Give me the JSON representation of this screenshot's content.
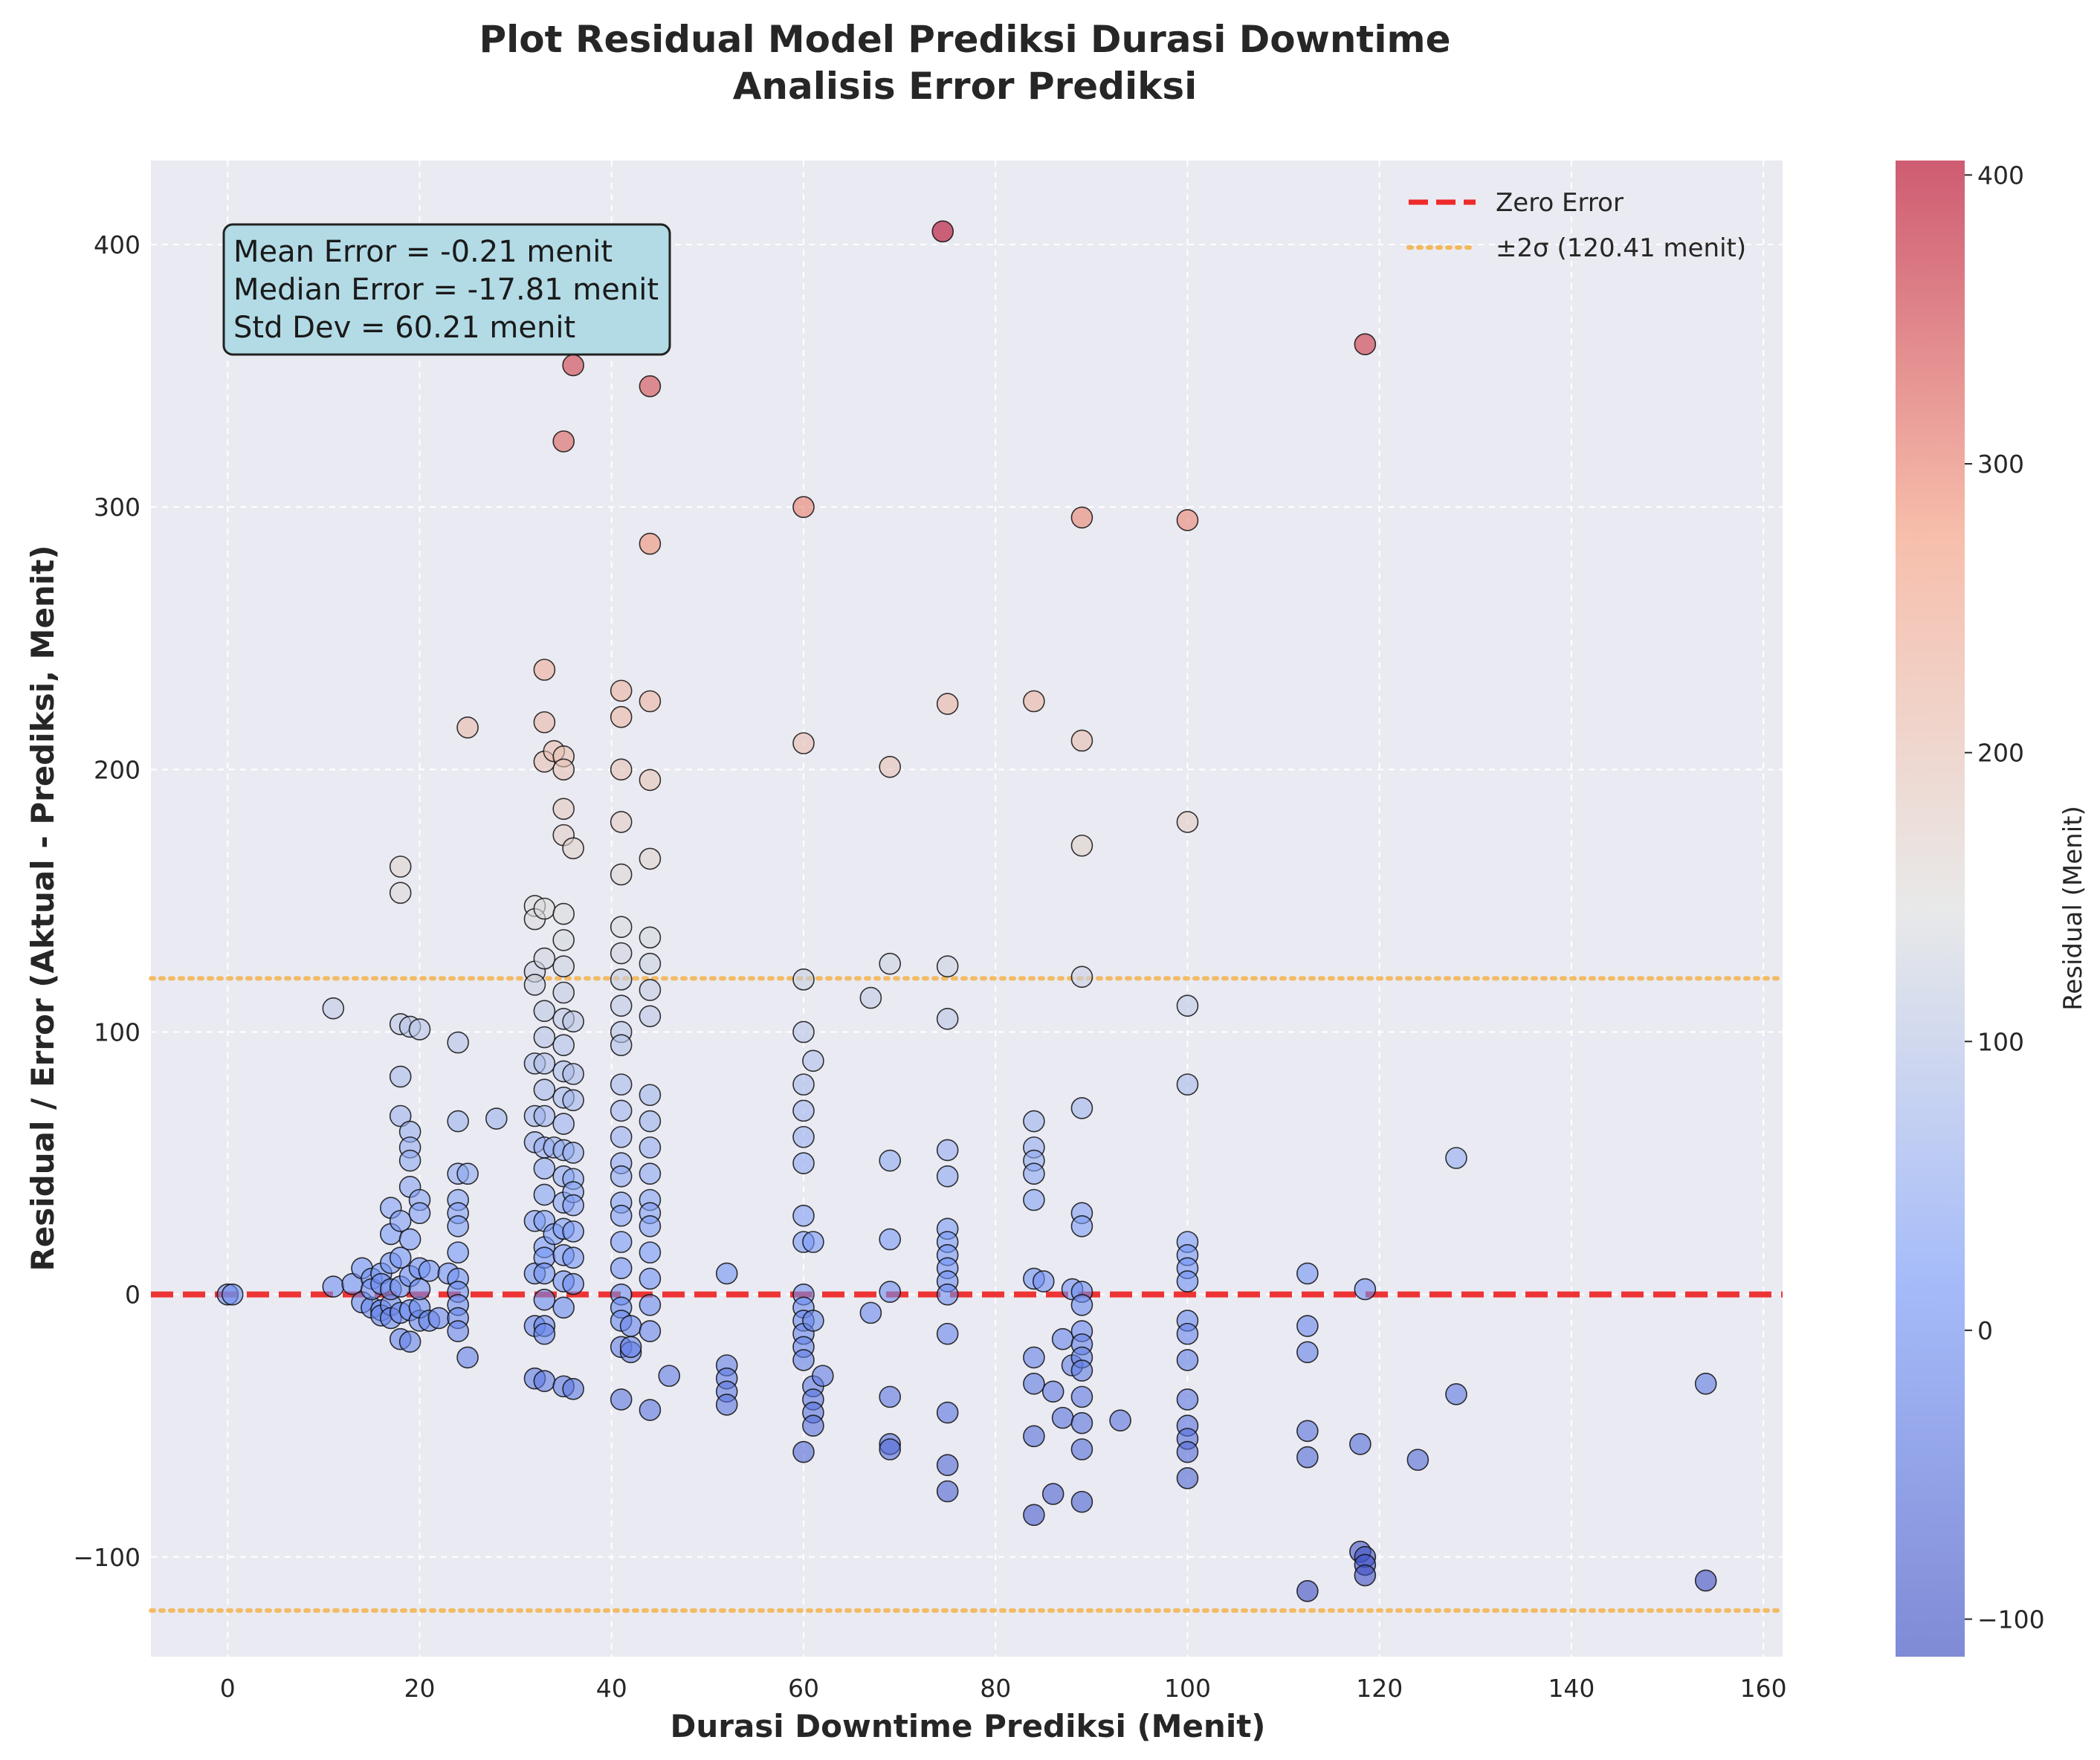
{
  "chart_data": {
    "type": "scatter",
    "title": [
      "Plot Residual Model Prediksi Durasi Downtime",
      "Analisis Error Prediksi"
    ],
    "xlabel": "Durasi Downtime Prediksi (Menit)",
    "ylabel": "Residual / Error (Aktual - Prediksi, Menit)",
    "xlim": [
      -8,
      162
    ],
    "ylim": [
      -138,
      432
    ],
    "xticks": [
      0,
      20,
      40,
      60,
      80,
      100,
      120,
      140,
      160
    ],
    "yticks": [
      -100,
      0,
      100,
      200,
      300,
      400
    ],
    "grid": true,
    "legend_position": "top-right",
    "legend": [
      {
        "label": "Zero Error",
        "style": "dashed",
        "color": "#ee2a2a"
      },
      {
        "label": "±2σ (120.41 menit)",
        "style": "dotted",
        "color": "#f5b041"
      }
    ],
    "reference_lines": [
      {
        "y": 0,
        "color": "#ee2a2a"
      },
      {
        "y": 120.41,
        "color": "#f5b041"
      },
      {
        "y": -120.41,
        "color": "#f5b041"
      }
    ],
    "stats_box": [
      "Mean Error = -0.21 menit",
      "Median Error = -17.81 menit",
      "Std Dev = 60.21 menit"
    ],
    "colorbar": {
      "label": "Residual (Menit)",
      "colormap": "coolwarm",
      "range": [
        -113,
        405
      ],
      "ticks": [
        -100,
        0,
        100,
        200,
        300,
        400
      ]
    },
    "points": [
      [
        0,
        0
      ],
      [
        0.5,
        0
      ],
      [
        11,
        109
      ],
      [
        11,
        3
      ],
      [
        13,
        4
      ],
      [
        14,
        10
      ],
      [
        14,
        -3
      ],
      [
        15,
        6
      ],
      [
        15,
        -5
      ],
      [
        15,
        2
      ],
      [
        16,
        8
      ],
      [
        16,
        -6
      ],
      [
        16,
        4
      ],
      [
        16,
        -8
      ],
      [
        17,
        33
      ],
      [
        17,
        23
      ],
      [
        17,
        12
      ],
      [
        17,
        -4
      ],
      [
        17,
        2
      ],
      [
        17,
        -9
      ],
      [
        18,
        163
      ],
      [
        18,
        153
      ],
      [
        18,
        103
      ],
      [
        18,
        83
      ],
      [
        18,
        68
      ],
      [
        18,
        28
      ],
      [
        18,
        14
      ],
      [
        18,
        -17
      ],
      [
        18,
        -7
      ],
      [
        18,
        3
      ],
      [
        19,
        102
      ],
      [
        19,
        62
      ],
      [
        19,
        56
      ],
      [
        19,
        51
      ],
      [
        19,
        41
      ],
      [
        19,
        21
      ],
      [
        19,
        -18
      ],
      [
        19,
        -6
      ],
      [
        19,
        7
      ],
      [
        20,
        101
      ],
      [
        20,
        36
      ],
      [
        20,
        31
      ],
      [
        20,
        10
      ],
      [
        20,
        -10
      ],
      [
        20,
        -5
      ],
      [
        20,
        2
      ],
      [
        21,
        9
      ],
      [
        21,
        -10
      ],
      [
        22,
        -9
      ],
      [
        23,
        8
      ],
      [
        24,
        96
      ],
      [
        24,
        66
      ],
      [
        24,
        46
      ],
      [
        24,
        36
      ],
      [
        24,
        31
      ],
      [
        24,
        26
      ],
      [
        24,
        16
      ],
      [
        24,
        6
      ],
      [
        24,
        1
      ],
      [
        24,
        -4
      ],
      [
        24,
        -9
      ],
      [
        24,
        -14
      ],
      [
        25,
        216
      ],
      [
        25,
        46
      ],
      [
        25,
        -24
      ],
      [
        28,
        67
      ],
      [
        32,
        148
      ],
      [
        32,
        143
      ],
      [
        32,
        123
      ],
      [
        32,
        118
      ],
      [
        32,
        88
      ],
      [
        32,
        68
      ],
      [
        32,
        58
      ],
      [
        32,
        28
      ],
      [
        32,
        8
      ],
      [
        32,
        -12
      ],
      [
        32,
        -32
      ],
      [
        33,
        238
      ],
      [
        33,
        218
      ],
      [
        33,
        203
      ],
      [
        33,
        147
      ],
      [
        33,
        128
      ],
      [
        33,
        108
      ],
      [
        33,
        98
      ],
      [
        33,
        88
      ],
      [
        33,
        78
      ],
      [
        33,
        68
      ],
      [
        33,
        56
      ],
      [
        33,
        48
      ],
      [
        33,
        38
      ],
      [
        33,
        28
      ],
      [
        33,
        18
      ],
      [
        33,
        14
      ],
      [
        33,
        8
      ],
      [
        33,
        -2
      ],
      [
        33,
        -12
      ],
      [
        33,
        -15
      ],
      [
        33,
        -33
      ],
      [
        34,
        207
      ],
      [
        34,
        56
      ],
      [
        34,
        23
      ],
      [
        35,
        325
      ],
      [
        35,
        205
      ],
      [
        35,
        200
      ],
      [
        35,
        185
      ],
      [
        35,
        175
      ],
      [
        35,
        145
      ],
      [
        35,
        135
      ],
      [
        35,
        125
      ],
      [
        35,
        115
      ],
      [
        35,
        105
      ],
      [
        35,
        95
      ],
      [
        35,
        85
      ],
      [
        35,
        75
      ],
      [
        35,
        65
      ],
      [
        35,
        55
      ],
      [
        35,
        45
      ],
      [
        35,
        35
      ],
      [
        35,
        25
      ],
      [
        35,
        15
      ],
      [
        35,
        5
      ],
      [
        35,
        -5
      ],
      [
        35,
        -35
      ],
      [
        36,
        354
      ],
      [
        36,
        170
      ],
      [
        36,
        104
      ],
      [
        36,
        84
      ],
      [
        36,
        74
      ],
      [
        36,
        54
      ],
      [
        36,
        44
      ],
      [
        36,
        39
      ],
      [
        36,
        34
      ],
      [
        36,
        24
      ],
      [
        36,
        14
      ],
      [
        36,
        4
      ],
      [
        36,
        -36
      ],
      [
        41,
        230
      ],
      [
        41,
        220
      ],
      [
        41,
        200
      ],
      [
        41,
        180
      ],
      [
        41,
        160
      ],
      [
        41,
        140
      ],
      [
        41,
        130
      ],
      [
        41,
        120
      ],
      [
        41,
        110
      ],
      [
        41,
        100
      ],
      [
        41,
        95
      ],
      [
        41,
        80
      ],
      [
        41,
        70
      ],
      [
        41,
        60
      ],
      [
        41,
        50
      ],
      [
        41,
        45
      ],
      [
        41,
        35
      ],
      [
        41,
        30
      ],
      [
        41,
        20
      ],
      [
        41,
        10
      ],
      [
        41,
        0
      ],
      [
        41,
        -5
      ],
      [
        41,
        -10
      ],
      [
        41,
        -20
      ],
      [
        41,
        -40
      ],
      [
        42,
        -12
      ],
      [
        42,
        -22
      ],
      [
        42,
        -20
      ],
      [
        44,
        346
      ],
      [
        44,
        286
      ],
      [
        44,
        226
      ],
      [
        44,
        196
      ],
      [
        44,
        166
      ],
      [
        44,
        136
      ],
      [
        44,
        126
      ],
      [
        44,
        116
      ],
      [
        44,
        106
      ],
      [
        44,
        76
      ],
      [
        44,
        66
      ],
      [
        44,
        56
      ],
      [
        44,
        46
      ],
      [
        44,
        36
      ],
      [
        44,
        31
      ],
      [
        44,
        26
      ],
      [
        44,
        16
      ],
      [
        44,
        6
      ],
      [
        44,
        -4
      ],
      [
        44,
        -14
      ],
      [
        44,
        -44
      ],
      [
        46,
        -31
      ],
      [
        52,
        8
      ],
      [
        52,
        -27
      ],
      [
        52,
        -32
      ],
      [
        52,
        -37
      ],
      [
        52,
        -42
      ],
      [
        60,
        300
      ],
      [
        60,
        210
      ],
      [
        60,
        120
      ],
      [
        60,
        100
      ],
      [
        60,
        80
      ],
      [
        60,
        70
      ],
      [
        60,
        60
      ],
      [
        60,
        50
      ],
      [
        60,
        30
      ],
      [
        60,
        20
      ],
      [
        60,
        0
      ],
      [
        60,
        -5
      ],
      [
        60,
        -10
      ],
      [
        60,
        -15
      ],
      [
        60,
        -20
      ],
      [
        60,
        -25
      ],
      [
        60,
        -60
      ],
      [
        61,
        89
      ],
      [
        61,
        20
      ],
      [
        61,
        -10
      ],
      [
        61,
        -35
      ],
      [
        61,
        -40
      ],
      [
        61,
        -45
      ],
      [
        61,
        -50
      ],
      [
        62,
        -31
      ],
      [
        67,
        -7
      ],
      [
        67,
        113
      ],
      [
        69,
        201
      ],
      [
        69,
        126
      ],
      [
        69,
        51
      ],
      [
        69,
        21
      ],
      [
        69,
        1
      ],
      [
        69,
        -39
      ],
      [
        69,
        -57
      ],
      [
        69,
        -59
      ],
      [
        74.5,
        405
      ],
      [
        75,
        225
      ],
      [
        75,
        125
      ],
      [
        75,
        105
      ],
      [
        75,
        55
      ],
      [
        75,
        45
      ],
      [
        75,
        25
      ],
      [
        75,
        20
      ],
      [
        75,
        15
      ],
      [
        75,
        10
      ],
      [
        75,
        5
      ],
      [
        75,
        0
      ],
      [
        75,
        -15
      ],
      [
        75,
        -45
      ],
      [
        75,
        -65
      ],
      [
        75,
        -75
      ],
      [
        84,
        226
      ],
      [
        84,
        66
      ],
      [
        84,
        56
      ],
      [
        84,
        51
      ],
      [
        84,
        46
      ],
      [
        84,
        36
      ],
      [
        84,
        6
      ],
      [
        84,
        -24
      ],
      [
        84,
        -34
      ],
      [
        84,
        -54
      ],
      [
        84,
        -84
      ],
      [
        85,
        5
      ],
      [
        86,
        -37
      ],
      [
        86,
        -76
      ],
      [
        87,
        -17
      ],
      [
        87,
        -47
      ],
      [
        88,
        2
      ],
      [
        88,
        -27
      ],
      [
        89,
        296
      ],
      [
        89,
        211
      ],
      [
        89,
        171
      ],
      [
        89,
        121
      ],
      [
        89,
        71
      ],
      [
        89,
        31
      ],
      [
        89,
        26
      ],
      [
        89,
        1
      ],
      [
        89,
        -4
      ],
      [
        89,
        -14
      ],
      [
        89,
        -19
      ],
      [
        89,
        -24
      ],
      [
        89,
        -29
      ],
      [
        89,
        -39
      ],
      [
        89,
        -49
      ],
      [
        89,
        -59
      ],
      [
        89,
        -79
      ],
      [
        93,
        -48
      ],
      [
        100,
        295
      ],
      [
        100,
        180
      ],
      [
        100,
        110
      ],
      [
        100,
        80
      ],
      [
        100,
        20
      ],
      [
        100,
        15
      ],
      [
        100,
        10
      ],
      [
        100,
        5
      ],
      [
        100,
        -10
      ],
      [
        100,
        -15
      ],
      [
        100,
        -25
      ],
      [
        100,
        -40
      ],
      [
        100,
        -50
      ],
      [
        100,
        -55
      ],
      [
        100,
        -60
      ],
      [
        100,
        -70
      ],
      [
        112.5,
        8
      ],
      [
        112.5,
        -12
      ],
      [
        112.5,
        -22
      ],
      [
        112.5,
        -52
      ],
      [
        112.5,
        -62
      ],
      [
        112.5,
        -113
      ],
      [
        118,
        -57
      ],
      [
        118,
        -98
      ],
      [
        118.5,
        362
      ],
      [
        118.5,
        2
      ],
      [
        118.5,
        -100
      ],
      [
        118.5,
        -103
      ],
      [
        118.5,
        -107
      ],
      [
        124,
        -63
      ],
      [
        128,
        52
      ],
      [
        128,
        -38
      ],
      [
        154,
        -34
      ],
      [
        154,
        -109
      ]
    ]
  }
}
